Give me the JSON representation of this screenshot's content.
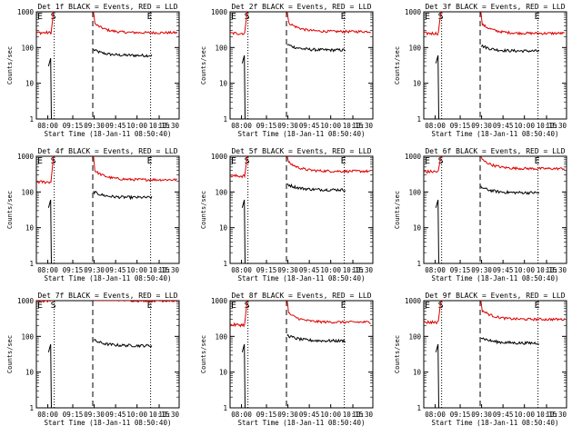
{
  "figure": {
    "xlabel": "Start Time (18-Jan-11 08:50:40)",
    "ylabel": "Counts/sec",
    "x_tick_labels": [
      "08:00",
      "09:15",
      "09:30",
      "09:45",
      "10:00",
      "10:15",
      "10:30"
    ],
    "y_tick_labels": [
      "1",
      "10",
      "100",
      "1000"
    ],
    "marker_labels": [
      "E",
      "S",
      "E"
    ],
    "colors": {
      "events": "#000000",
      "lld": "#dd0000",
      "axes": "#000000",
      "background": "#ffffff"
    }
  },
  "chart_data": [
    {
      "type": "line",
      "title": "Det 1f BLACK = Events, RED = LLD",
      "y_scale": "log",
      "ylim": [
        1,
        1000
      ],
      "series": [
        {
          "name": "Events",
          "color": "#000000",
          "pre_level": 50,
          "post_level": 60
        },
        {
          "name": "LLD",
          "color": "#dd0000",
          "pre_level": 260,
          "post_level": 260
        }
      ]
    },
    {
      "type": "line",
      "title": "Det 2f BLACK = Events, RED = LLD",
      "y_scale": "log",
      "ylim": [
        1,
        1000
      ],
      "series": [
        {
          "name": "Events",
          "color": "#000000",
          "pre_level": 60,
          "post_level": 85
        },
        {
          "name": "LLD",
          "color": "#dd0000",
          "pre_level": 250,
          "post_level": 280
        }
      ]
    },
    {
      "type": "line",
      "title": "Det 3f BLACK = Events, RED = LLD",
      "y_scale": "log",
      "ylim": [
        1,
        1000
      ],
      "series": [
        {
          "name": "Events",
          "color": "#000000",
          "pre_level": 60,
          "post_level": 80
        },
        {
          "name": "LLD",
          "color": "#dd0000",
          "pre_level": 250,
          "post_level": 250
        }
      ]
    },
    {
      "type": "line",
      "title": "Det 4f BLACK = Events, RED = LLD",
      "y_scale": "log",
      "ylim": [
        1,
        1000
      ],
      "series": [
        {
          "name": "Events",
          "color": "#000000",
          "pre_level": 60,
          "post_level": 70
        },
        {
          "name": "LLD",
          "color": "#dd0000",
          "pre_level": 190,
          "post_level": 220
        }
      ]
    },
    {
      "type": "line",
      "title": "Det 5f BLACK = Events, RED = LLD",
      "y_scale": "log",
      "ylim": [
        1,
        1000
      ],
      "series": [
        {
          "name": "Events",
          "color": "#000000",
          "pre_level": 60,
          "post_level": 115
        },
        {
          "name": "LLD",
          "color": "#dd0000",
          "pre_level": 280,
          "post_level": 380
        }
      ]
    },
    {
      "type": "line",
      "title": "Det 6f BLACK = Events, RED = LLD",
      "y_scale": "log",
      "ylim": [
        1,
        1000
      ],
      "series": [
        {
          "name": "Events",
          "color": "#000000",
          "pre_level": 60,
          "post_level": 95
        },
        {
          "name": "LLD",
          "color": "#dd0000",
          "pre_level": 370,
          "post_level": 450
        }
      ]
    },
    {
      "type": "line",
      "title": "Det 7f BLACK = Events, RED = LLD",
      "y_scale": "log",
      "ylim": [
        1,
        1000
      ],
      "series": [
        {
          "name": "Events",
          "color": "#000000",
          "pre_level": 60,
          "post_level": 55
        },
        {
          "name": "LLD",
          "color": "#dd0000",
          "pre_level": 1000,
          "post_level": 1000
        }
      ]
    },
    {
      "type": "line",
      "title": "Det 8f BLACK = Events, RED = LLD",
      "y_scale": "log",
      "ylim": [
        1,
        1000
      ],
      "series": [
        {
          "name": "Events",
          "color": "#000000",
          "pre_level": 60,
          "post_level": 75
        },
        {
          "name": "LLD",
          "color": "#dd0000",
          "pre_level": 210,
          "post_level": 250
        }
      ]
    },
    {
      "type": "line",
      "title": "Det 9f BLACK = Events, RED = LLD",
      "y_scale": "log",
      "ylim": [
        1,
        1000
      ],
      "series": [
        {
          "name": "Events",
          "color": "#000000",
          "pre_level": 60,
          "post_level": 65
        },
        {
          "name": "LLD",
          "color": "#dd0000",
          "pre_level": 250,
          "post_level": 300
        }
      ]
    }
  ]
}
